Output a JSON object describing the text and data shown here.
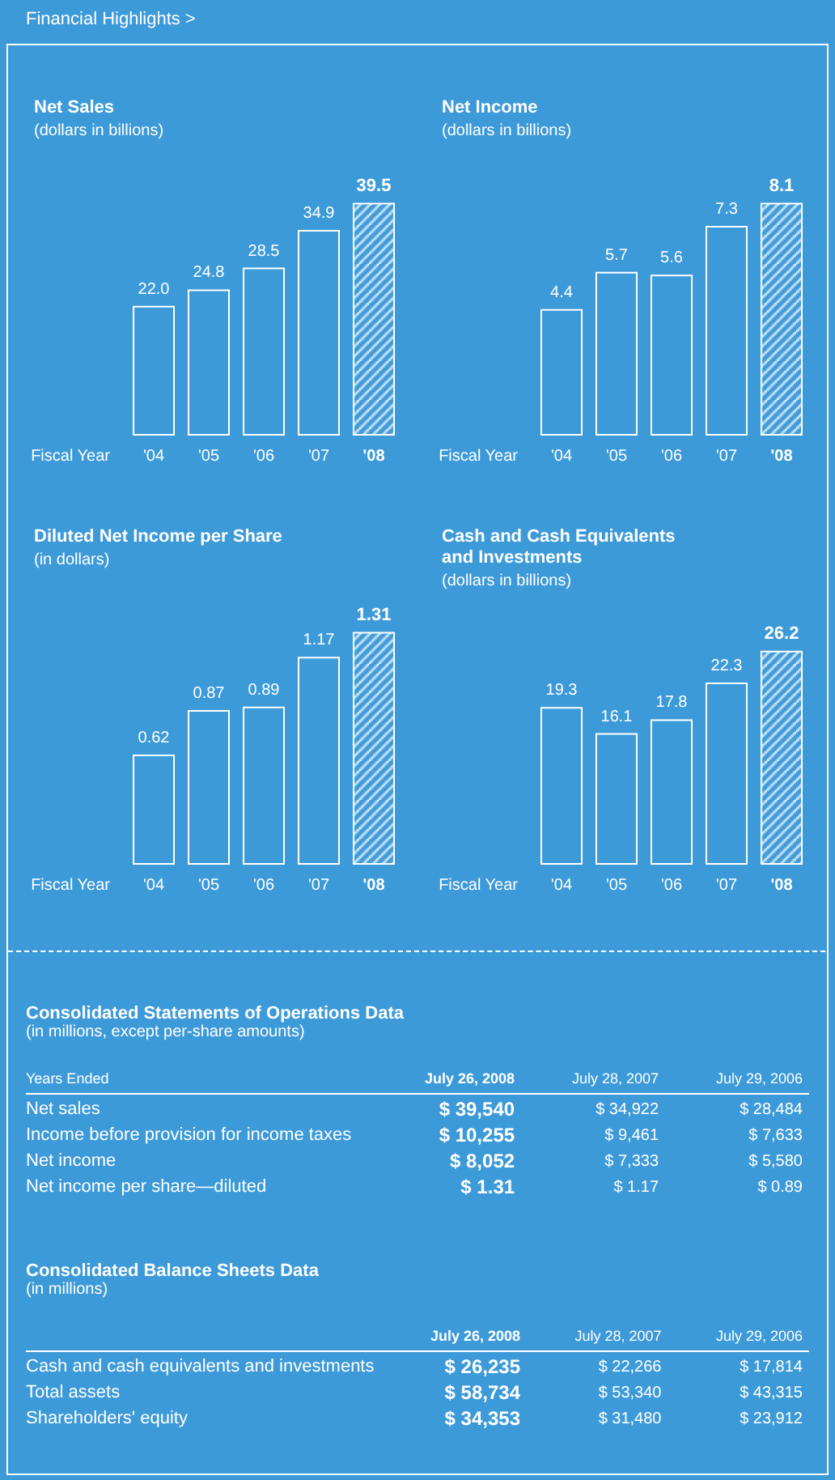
{
  "chart_data": [
    {
      "type": "other",
      "title": "Financial Highlights >"
    },
    {
      "type": "bar",
      "title": "Net Sales",
      "subtitle": "(dollars in billions)",
      "xlabel": "Fiscal Year",
      "categories": [
        "'04",
        "'05",
        "'06",
        "'07",
        "'08"
      ],
      "values": [
        22.0,
        24.8,
        28.5,
        34.9,
        39.5
      ],
      "value_labels": [
        "22.0",
        "24.8",
        "28.5",
        "34.9",
        "39.5"
      ],
      "color": "#ffffff"
    },
    {
      "type": "bar",
      "title": "Net Income",
      "subtitle": "(dollars in billions)",
      "xlabel": "Fiscal Year",
      "categories": [
        "'04",
        "'05",
        "'06",
        "'07",
        "'08"
      ],
      "values": [
        4.4,
        5.7,
        5.6,
        7.3,
        8.1
      ],
      "value_labels": [
        "4.4",
        "5.7",
        "5.6",
        "7.3",
        "8.1"
      ],
      "color": "#ffffff"
    },
    {
      "type": "bar",
      "title": "Diluted Net Income per Share",
      "subtitle": "(in dollars)",
      "xlabel": "Fiscal Year",
      "categories": [
        "'04",
        "'05",
        "'06",
        "'07",
        "'08"
      ],
      "values": [
        0.62,
        0.87,
        0.89,
        1.17,
        1.31
      ],
      "value_labels": [
        "0.62",
        "0.87",
        "0.89",
        "1.17",
        "1.31"
      ],
      "color": "#ffffff"
    },
    {
      "type": "bar",
      "title": "Cash and Cash Equivalents\nand Investments",
      "subtitle": "(dollars in billions)",
      "xlabel": "Fiscal Year",
      "categories": [
        "'04",
        "'05",
        "'06",
        "'07",
        "'08"
      ],
      "values": [
        19.3,
        16.1,
        17.8,
        22.3,
        26.2
      ],
      "value_labels": [
        "19.3",
        "16.1",
        "17.8",
        "22.3",
        "26.2"
      ],
      "color": "#ffffff"
    },
    {
      "type": "other",
      "title": "Consolidated Statements of Operations Data",
      "subtitle": "(in millions, except per-share amounts)",
      "xlabel": "Years Ended",
      "categories": [
        "July 26, 2008",
        "July 28, 2007",
        "July 29, 2006"
      ],
      "y_categories": [
        "Net sales",
        "Income before provision for income taxes",
        "Net income",
        "Net income per share—diluted"
      ],
      "cell_labels": [
        [
          "$ 39,540",
          "$ 34,922",
          "$ 28,484"
        ],
        [
          "$ 10,255",
          "$ 9,461",
          "$ 7,633"
        ],
        [
          "$ 8,052",
          "$ 7,333",
          "$ 5,580"
        ],
        [
          "$ 1.31",
          "$ 1.17",
          "$ 0.89"
        ]
      ]
    },
    {
      "type": "other",
      "title": "Consolidated Balance Sheets Data",
      "subtitle": "(in millions)",
      "categories": [
        "July 26, 2008",
        "July 28, 2007",
        "July 29, 2006"
      ],
      "y_categories": [
        "Cash and cash equivalents and investments",
        "Total assets",
        "Shareholders' equity"
      ],
      "cell_labels": [
        [
          "$ 26,235",
          "$ 22,266",
          "$ 17,814"
        ],
        [
          "$ 58,734",
          "$ 53,340",
          "$ 43,315"
        ],
        [
          "$ 34,353",
          "$ 31,480",
          "$ 23,912"
        ]
      ]
    }
  ]
}
